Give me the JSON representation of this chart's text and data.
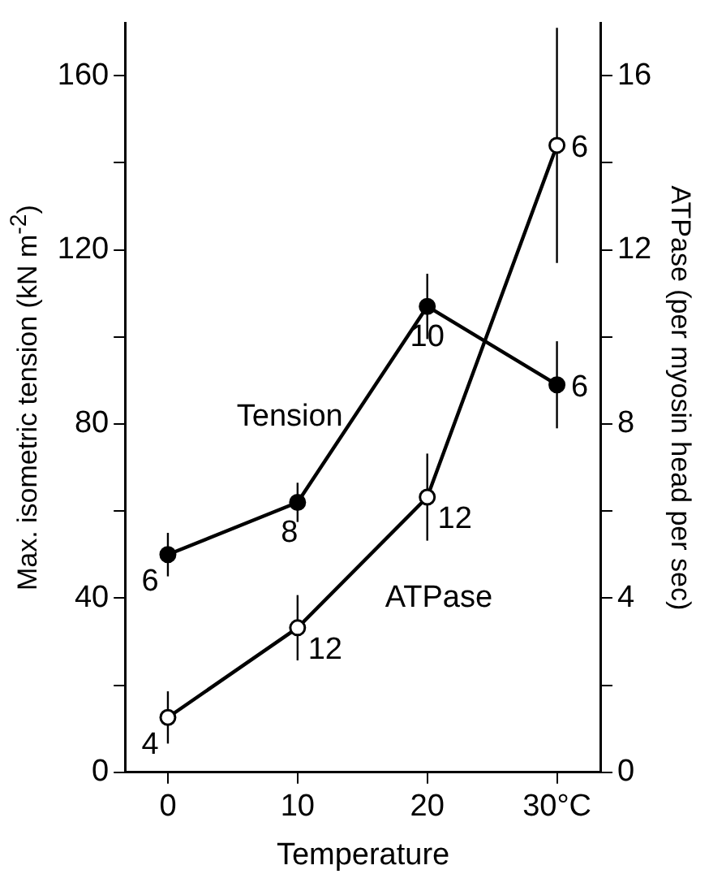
{
  "chart_data": {
    "type": "line",
    "xlabel": "Temperature",
    "ylabel": "Max. isometric tension (kN m$^{-2}$)",
    "y2label": "ATPase (per myosin head per sec)",
    "x": [
      0,
      10,
      20,
      30
    ],
    "xlim": [
      -3.3,
      33.4
    ],
    "xticks": [
      0,
      10,
      20,
      {
        "value": 30,
        "label": "30°C"
      }
    ],
    "ylim": [
      0,
      172
    ],
    "yticks": [
      0,
      {
        "value": 20,
        "label": null
      },
      40,
      {
        "value": 60,
        "label": null
      },
      80,
      {
        "value": 100,
        "label": null
      },
      120,
      {
        "value": 140,
        "label": null
      },
      160
    ],
    "y2lim": [
      0,
      17.2
    ],
    "y2ticks": [
      0,
      {
        "value": 2,
        "label": null
      },
      4,
      {
        "value": 6,
        "label": null
      },
      8,
      {
        "value": 10,
        "label": null
      },
      12,
      {
        "value": 14,
        "label": null
      },
      16
    ],
    "series": [
      {
        "name": "Tension",
        "color": "#000000",
        "values": [
          50,
          62,
          107,
          89
        ],
        "errors": [
          5,
          4.5,
          7.5,
          10
        ]
      },
      {
        "name": "ATPase",
        "color": "#000000",
        "axis": "y2",
        "values": [
          1.26,
          3.32,
          6.32,
          14.4
        ],
        "errors": [
          0.6,
          0.75,
          1,
          2.7
        ]
      }
    ],
    "annotations": [
      "6",
      "8",
      "10",
      "6",
      "4",
      "12",
      "12",
      "6"
    ],
    "marker": "circle",
    "legend": false,
    "grid": false
  }
}
